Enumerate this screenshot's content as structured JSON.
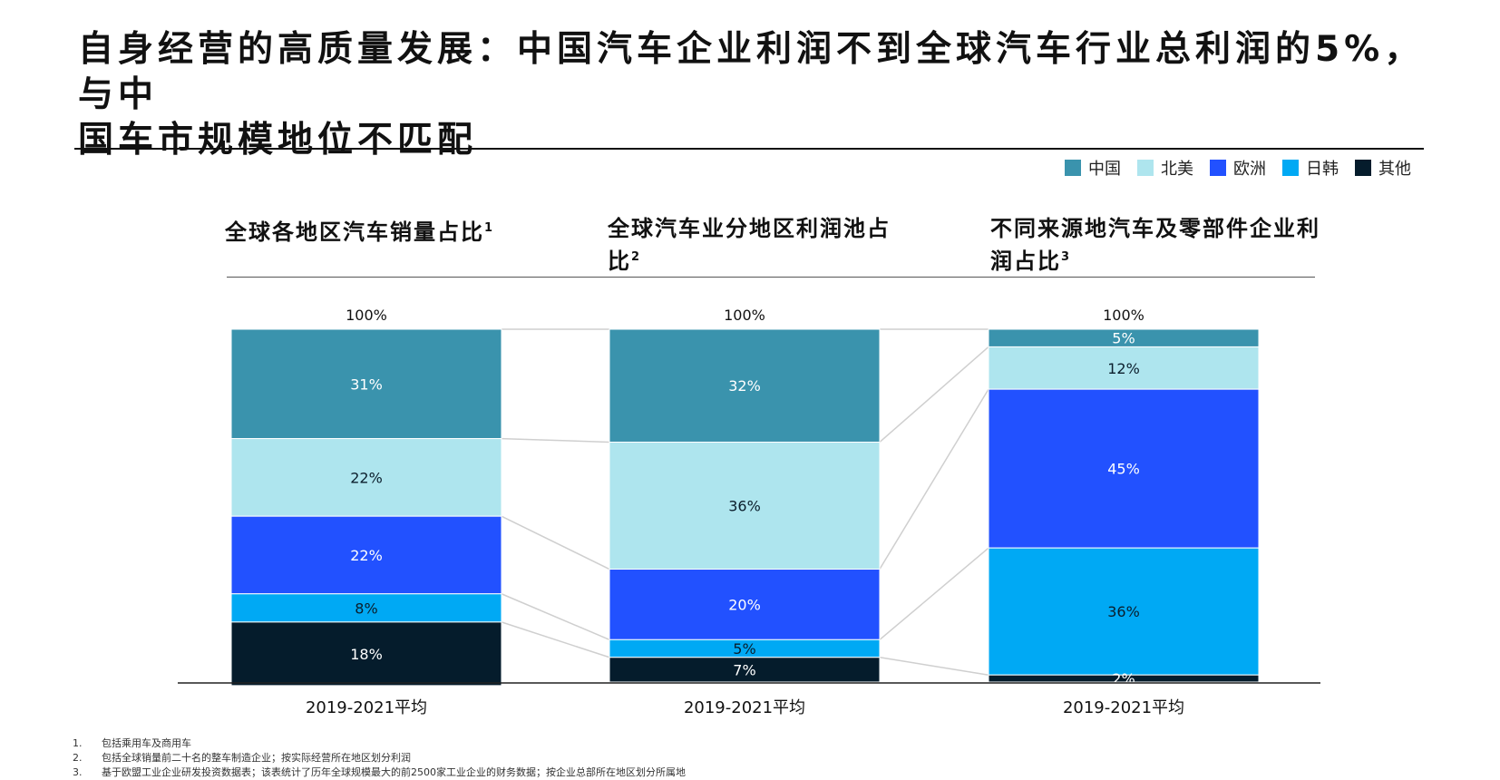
{
  "title_line1": "自身经营的高质量发展：中国汽车企业利润不到全球汽车行业总利润的5%，与中",
  "title_line2": "国车市规模地位不匹配",
  "legend": [
    {
      "label": "中国",
      "color": "#3a93ad"
    },
    {
      "label": "北美",
      "color": "#aee5ee"
    },
    {
      "label": "欧洲",
      "color": "#2251ff"
    },
    {
      "label": "日韩",
      "color": "#00a9f4"
    },
    {
      "label": "其他",
      "color": "#051c2c"
    }
  ],
  "panels": [
    {
      "title": "全球各地区汽车销量占比",
      "sup": "1"
    },
    {
      "title": "全球汽车业分地区利润池占比",
      "sup": "2"
    },
    {
      "title": "不同来源地汽车及零部件企业利润占比",
      "sup": "3"
    }
  ],
  "chart_data": {
    "type": "bar",
    "stacked": true,
    "categories": [
      "2019-2021平均",
      "2019-2021平均",
      "2019-2021平均"
    ],
    "total_labels": [
      "100%",
      "100%",
      "100%"
    ],
    "series": [
      {
        "name": "中国",
        "values": [
          31,
          32,
          5
        ],
        "labels": [
          "31%",
          "32%",
          "5%"
        ]
      },
      {
        "name": "北美",
        "values": [
          22,
          36,
          12
        ],
        "labels": [
          "22%",
          "36%",
          "12%"
        ]
      },
      {
        "name": "欧洲",
        "values": [
          22,
          20,
          45
        ],
        "labels": [
          "22%",
          "20%",
          "45%"
        ]
      },
      {
        "name": "日韩",
        "values": [
          8,
          5,
          36
        ],
        "labels": [
          "8%",
          "5%",
          "36%"
        ]
      },
      {
        "name": "其他",
        "values": [
          18,
          7,
          2
        ],
        "labels": [
          "18%",
          "7%",
          "2%"
        ]
      }
    ],
    "ylim": [
      0,
      100
    ],
    "legend_position": "top-right"
  },
  "footnotes": [
    {
      "num": "1.",
      "text": "包括乘用车及商用车"
    },
    {
      "num": "2.",
      "text": "包括全球销量前二十名的整车制造企业；按实际经营所在地区划分利润"
    },
    {
      "num": "3.",
      "text": "基于欧盟工业企业研发投资数据表；该表统计了历年全球规模最大的前2500家工业企业的财务数据；按企业总部所在地区划分所属地"
    }
  ]
}
